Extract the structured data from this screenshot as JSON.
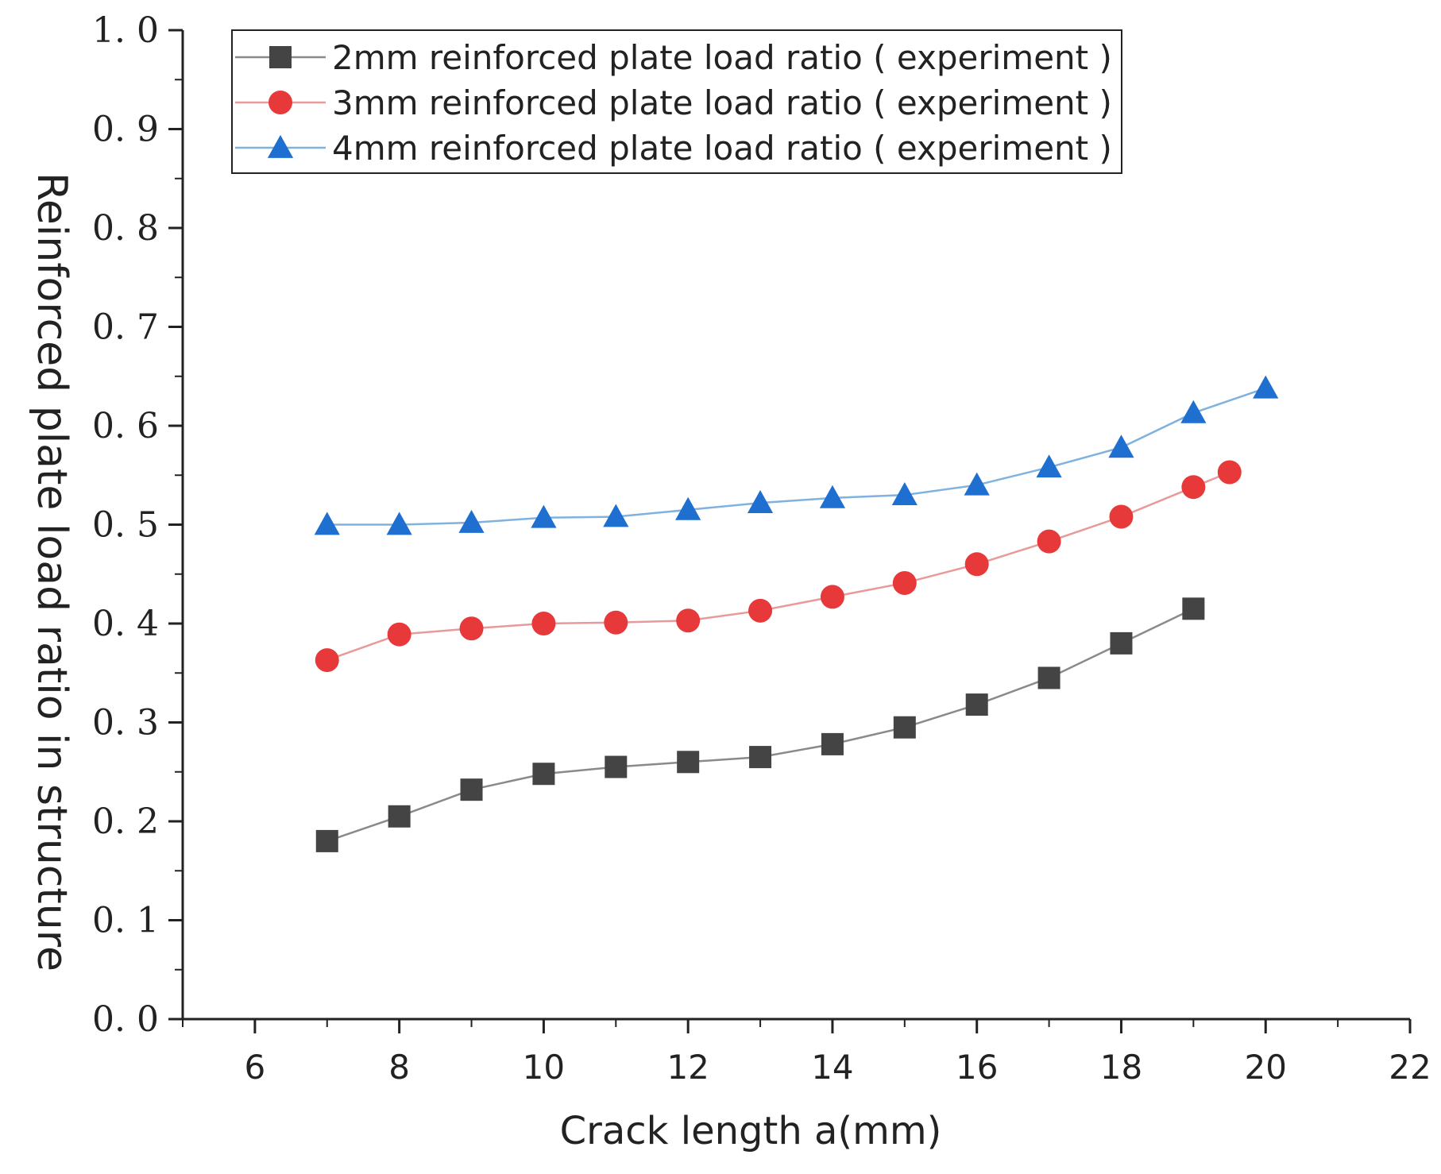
{
  "chart_data": {
    "type": "line",
    "title": "",
    "xlabel": "Crack length a(mm)",
    "ylabel": "Reinforced plate load ratio in structure",
    "xlim": [
      5,
      22
    ],
    "ylim": [
      0.0,
      1.0
    ],
    "x_ticks": [
      6,
      8,
      10,
      12,
      14,
      16,
      18,
      20,
      22
    ],
    "x_tick_labels": [
      "6",
      "8",
      "10",
      "12",
      "14",
      "16",
      "18",
      "20",
      "22"
    ],
    "y_ticks": [
      0.0,
      0.1,
      0.2,
      0.3,
      0.4,
      0.5,
      0.6,
      0.7,
      0.8,
      0.9,
      1.0
    ],
    "y_tick_labels": [
      "0. 0",
      "0. 1",
      "0. 2",
      "0. 3",
      "0. 4",
      "0. 5",
      "0. 6",
      "0. 7",
      "0. 8",
      "0. 9",
      "1. 0"
    ],
    "grid": false,
    "legend_position": "top-left",
    "series": [
      {
        "name": "2mm reinforced plate load ratio ( experiment )",
        "marker": "square",
        "color": "#444444",
        "line_color": "#8a8a8a",
        "x": [
          7,
          8,
          9,
          10,
          11,
          12,
          13,
          14,
          15,
          16,
          17,
          18,
          19
        ],
        "y": [
          0.18,
          0.205,
          0.232,
          0.248,
          0.255,
          0.26,
          0.265,
          0.278,
          0.295,
          0.318,
          0.345,
          0.38,
          0.415
        ]
      },
      {
        "name": "3mm reinforced plate load ratio ( experiment )",
        "marker": "circle",
        "color": "#e8393a",
        "line_color": "#e89a9a",
        "x": [
          7,
          8,
          9,
          10,
          11,
          12,
          13,
          14,
          15,
          16,
          17,
          18,
          19,
          19.5
        ],
        "y": [
          0.363,
          0.389,
          0.395,
          0.4,
          0.401,
          0.403,
          0.413,
          0.427,
          0.441,
          0.46,
          0.483,
          0.508,
          0.538,
          0.553
        ]
      },
      {
        "name": "4mm reinforced plate load ratio ( experiment )",
        "marker": "triangle",
        "color": "#1f6fd1",
        "line_color": "#7fb2de",
        "x": [
          7,
          8,
          9,
          10,
          11,
          12,
          13,
          14,
          15,
          16,
          17,
          18,
          19,
          20
        ],
        "y": [
          0.5,
          0.5,
          0.502,
          0.507,
          0.508,
          0.515,
          0.522,
          0.527,
          0.53,
          0.54,
          0.558,
          0.578,
          0.613,
          0.638
        ]
      }
    ]
  }
}
